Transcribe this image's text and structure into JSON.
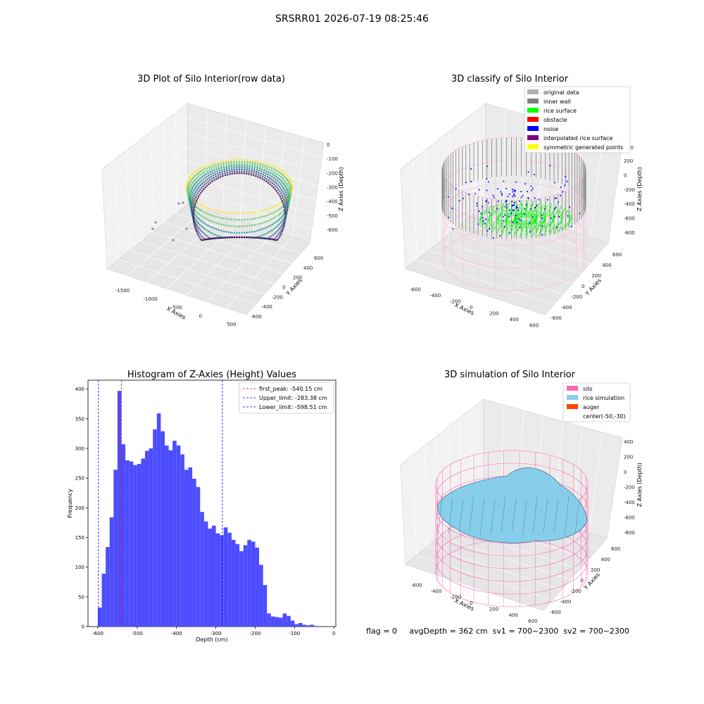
{
  "suptitle": "SRSRR01 2026-07-19 08:25:46",
  "footer": "flag = 0     avgDepth = 362 cm  sv1 = 700~2300  sv2 = 700~2300",
  "panel1": {
    "title": "3D Plot of Silo Interior(row data)",
    "xlabel": "X Axies",
    "ylabel": "Y Axies",
    "zlabel": "Z Axies (Depth)",
    "xticks": [
      "-1500",
      "-1000",
      "-500",
      "0",
      "500"
    ],
    "yticks": [
      "600",
      "400",
      "200",
      "0",
      "-200",
      "-400",
      "-600"
    ],
    "zticks": [
      "0",
      "-100",
      "-200",
      "-300",
      "-400",
      "-500",
      "-600"
    ]
  },
  "panel2": {
    "title": "3D classify of Silo Interior",
    "xlabel": "X Axies",
    "ylabel": "Y Axies",
    "zlabel": "Z Axies (Depth)",
    "xticks": [
      "-600",
      "-400",
      "-200",
      "0",
      "200",
      "400",
      "600"
    ],
    "yticks": [
      "600",
      "400",
      "200",
      "0",
      "-200",
      "-400",
      "-600"
    ],
    "zticks": [
      "200",
      "0",
      "-200",
      "-400",
      "-600",
      "-800"
    ],
    "ztick_partial": "00",
    "legend": [
      {
        "label": "original data",
        "color": "#b0b0b0"
      },
      {
        "label": "inner wall",
        "color": "#808080"
      },
      {
        "label": "rice surface",
        "color": "#00ff00"
      },
      {
        "label": "obstacle",
        "color": "#ff0000"
      },
      {
        "label": "noise",
        "color": "#0000ff"
      },
      {
        "label": "interpolated rice surface",
        "color": "#800080"
      },
      {
        "label": "symmetric generated points",
        "color": "#ffff00"
      }
    ]
  },
  "panel4": {
    "title": "3D simulation of Silo Interior",
    "xlabel": "X Axies",
    "ylabel": "Y Axies",
    "zlabel": "Z Axies (Depth)",
    "xticks": [
      "-600",
      "-400",
      "-200",
      "0",
      "200",
      "400",
      "600"
    ],
    "yticks": [
      "600",
      "400",
      "200",
      "0",
      "-200",
      "-400",
      "-600"
    ],
    "zticks": [
      "400",
      "200",
      "0",
      "-200",
      "-400",
      "-600",
      "-800"
    ],
    "legend": [
      {
        "label": "silo",
        "color": "#ff69b4"
      },
      {
        "label": "rice simulation",
        "color": "#87ceeb"
      },
      {
        "label": "auger",
        "color": "#ff4500"
      },
      {
        "label": "center(-50,-30)",
        "color": ""
      }
    ]
  },
  "chart_data": {
    "type": "bar",
    "title": "Histogram of Z-Axies (Height) Values",
    "xlabel": "Depth (cm)",
    "ylabel": "Frequency",
    "xlim": [
      -625,
      5
    ],
    "ylim": [
      0,
      415
    ],
    "bar_color": "#4d4dff",
    "bin_width": 10,
    "bin_starts": [
      -600,
      -590,
      -580,
      -570,
      -560,
      -550,
      -540,
      -530,
      -520,
      -510,
      -500,
      -490,
      -480,
      -470,
      -460,
      -450,
      -440,
      -430,
      -420,
      -410,
      -400,
      -390,
      -380,
      -370,
      -360,
      -350,
      -340,
      -330,
      -320,
      -310,
      -300,
      -290,
      -280,
      -270,
      -260,
      -250,
      -240,
      -230,
      -220,
      -210,
      -200,
      -190,
      -180,
      -170,
      -160,
      -150,
      -140,
      -130,
      -120,
      -110,
      -100,
      -90,
      -80,
      -70,
      -60,
      -50,
      -40,
      -30,
      -20
    ],
    "values": [
      32,
      89,
      134,
      184,
      264,
      397,
      307,
      280,
      278,
      272,
      274,
      283,
      296,
      300,
      332,
      359,
      329,
      305,
      297,
      313,
      305,
      290,
      264,
      268,
      249,
      235,
      193,
      177,
      165,
      170,
      157,
      154,
      167,
      158,
      146,
      139,
      127,
      137,
      146,
      143,
      133,
      104,
      70,
      22,
      17,
      16,
      15,
      22,
      18,
      10,
      4,
      6,
      3,
      2,
      3,
      1,
      0,
      0,
      0
    ],
    "xticks": [
      -600,
      -500,
      -400,
      -300,
      -200,
      -100,
      0
    ],
    "yticks": [
      0,
      50,
      100,
      150,
      200,
      250,
      300,
      350,
      400
    ],
    "vlines": [
      {
        "label": "first_peak: -540.15 cm",
        "x": -540.15,
        "color": "#ff0000"
      },
      {
        "label": "Upper_limit: -283.38 cm",
        "x": -283.38,
        "color": "#0000ff"
      },
      {
        "label": "Lower_limit: -598.51 cm",
        "x": -598.51,
        "color": "#0000ff"
      }
    ]
  }
}
